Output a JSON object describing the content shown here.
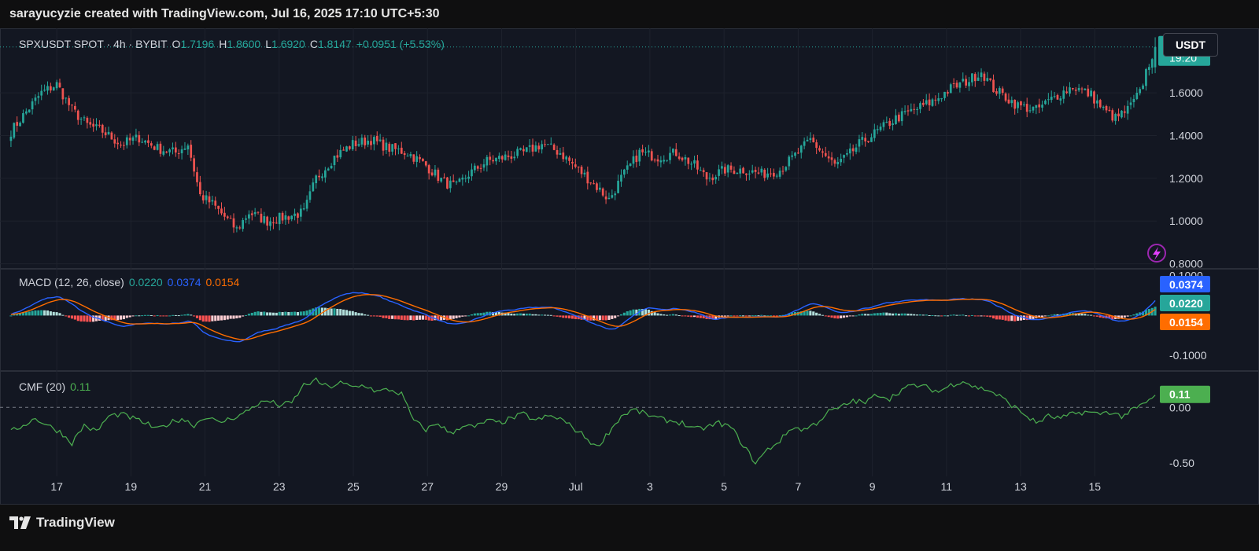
{
  "header": {
    "attribution": "sarayucyzie created with TradingView.com, Jul 16, 2025 17:10 UTC+5:30"
  },
  "currency_button": {
    "label": "USDT"
  },
  "footer": {
    "brand": "TradingView",
    "logo_icon": "tradingview-logo-icon"
  },
  "colors": {
    "up": "#26a69a",
    "down": "#ef5350",
    "macd": "#2962ff",
    "signal": "#ff6d00",
    "cmf": "#4caf50",
    "hist_up_strong": "#26a69a",
    "hist_up_weak": "#b2dfdb",
    "hist_down_strong": "#ff5252",
    "hist_down_weak": "#ffcdd2"
  },
  "price_legend": {
    "symbol": "SPXUSDT SPOT · 4h · BYBIT",
    "o_label": "O",
    "o_value": "1.7196",
    "h_label": "H",
    "h_value": "1.8600",
    "l_label": "L",
    "l_value": "1.6920",
    "c_label": "C",
    "c_value": "1.8147",
    "change": "+0.0951 (+5.53%)"
  },
  "last_price_tag": {
    "price": "1.8147",
    "countdown": "19:20"
  },
  "macd_legend": {
    "title": "MACD (12, 26, close)",
    "hist": "0.0220",
    "macd": "0.0374",
    "signal": "0.0154"
  },
  "cmf_legend": {
    "title": "CMF (20)",
    "value": "0.11"
  },
  "chart_data": [
    {
      "type": "candlestick",
      "symbol": "SPXUSDT SPOT",
      "interval": "4h",
      "exchange": "BYBIT",
      "quote_currency": "USDT",
      "x_ticks": [
        "17",
        "19",
        "21",
        "23",
        "25",
        "27",
        "29",
        "Jul",
        "3",
        "5",
        "7",
        "9",
        "11",
        "13",
        "15"
      ],
      "y_ticks": [
        "0.8000",
        "1.0000",
        "1.2000",
        "1.4000",
        "1.6000"
      ],
      "ylim": [
        0.78,
        1.88
      ],
      "last": {
        "open": 1.7196,
        "high": 1.86,
        "low": 1.692,
        "close": 1.8147,
        "change": 0.0951,
        "change_pct": 5.53
      },
      "close_anchors": [
        [
          0,
          1.42
        ],
        [
          6,
          1.53
        ],
        [
          10,
          1.6
        ],
        [
          15,
          1.64
        ],
        [
          20,
          1.52
        ],
        [
          25,
          1.45
        ],
        [
          30,
          1.42
        ],
        [
          36,
          1.36
        ],
        [
          42,
          1.39
        ],
        [
          48,
          1.34
        ],
        [
          54,
          1.32
        ],
        [
          58,
          1.36
        ],
        [
          62,
          1.12
        ],
        [
          66,
          1.08
        ],
        [
          70,
          1.02
        ],
        [
          74,
          0.96
        ],
        [
          78,
          1.04
        ],
        [
          84,
          1.0
        ],
        [
          90,
          1.02
        ],
        [
          96,
          1.04
        ],
        [
          100,
          1.2
        ],
        [
          106,
          1.3
        ],
        [
          112,
          1.36
        ],
        [
          118,
          1.38
        ],
        [
          124,
          1.34
        ],
        [
          130,
          1.32
        ],
        [
          136,
          1.26
        ],
        [
          142,
          1.18
        ],
        [
          146,
          1.16
        ],
        [
          150,
          1.22
        ],
        [
          156,
          1.28
        ],
        [
          162,
          1.3
        ],
        [
          168,
          1.32
        ],
        [
          174,
          1.36
        ],
        [
          180,
          1.32
        ],
        [
          186,
          1.24
        ],
        [
          192,
          1.16
        ],
        [
          196,
          1.1
        ],
        [
          200,
          1.2
        ],
        [
          206,
          1.32
        ],
        [
          212,
          1.3
        ],
        [
          218,
          1.32
        ],
        [
          224,
          1.26
        ],
        [
          228,
          1.2
        ],
        [
          234,
          1.24
        ],
        [
          240,
          1.24
        ],
        [
          246,
          1.22
        ],
        [
          252,
          1.24
        ],
        [
          258,
          1.32
        ],
        [
          262,
          1.38
        ],
        [
          266,
          1.32
        ],
        [
          270,
          1.26
        ],
        [
          274,
          1.3
        ],
        [
          278,
          1.36
        ],
        [
          284,
          1.42
        ],
        [
          290,
          1.48
        ],
        [
          296,
          1.52
        ],
        [
          302,
          1.56
        ],
        [
          308,
          1.62
        ],
        [
          314,
          1.66
        ],
        [
          318,
          1.7
        ],
        [
          322,
          1.62
        ],
        [
          326,
          1.58
        ],
        [
          330,
          1.54
        ],
        [
          336,
          1.52
        ],
        [
          342,
          1.58
        ],
        [
          348,
          1.63
        ],
        [
          354,
          1.59
        ],
        [
          358,
          1.52
        ],
        [
          362,
          1.48
        ],
        [
          366,
          1.52
        ],
        [
          370,
          1.6
        ],
        [
          372,
          1.7
        ],
        [
          375,
          1.8147
        ]
      ]
    },
    {
      "type": "macd",
      "name": "MACD (12, 26, close)",
      "histogram": 0.022,
      "macd": 0.0374,
      "signal": 0.0154,
      "y_ticks": [
        "-0.1000",
        "0.1000"
      ],
      "ylim": [
        -0.135,
        0.115
      ]
    },
    {
      "type": "line",
      "name": "CMF (20)",
      "value": 0.11,
      "y_ticks": [
        "-0.50",
        "0.00"
      ],
      "ylim": [
        -0.62,
        0.32
      ],
      "zero_line": true,
      "anchors": [
        [
          0,
          -0.22
        ],
        [
          4,
          -0.16
        ],
        [
          8,
          -0.1
        ],
        [
          12,
          -0.16
        ],
        [
          16,
          -0.22
        ],
        [
          20,
          -0.32
        ],
        [
          24,
          -0.16
        ],
        [
          28,
          -0.22
        ],
        [
          32,
          -0.08
        ],
        [
          36,
          -0.06
        ],
        [
          40,
          -0.1
        ],
        [
          44,
          -0.14
        ],
        [
          48,
          -0.2
        ],
        [
          52,
          -0.14
        ],
        [
          56,
          -0.1
        ],
        [
          60,
          -0.16
        ],
        [
          64,
          -0.08
        ],
        [
          68,
          -0.14
        ],
        [
          72,
          -0.1
        ],
        [
          76,
          -0.06
        ],
        [
          80,
          0.02
        ],
        [
          84,
          0.06
        ],
        [
          88,
          0.02
        ],
        [
          92,
          0.04
        ],
        [
          96,
          0.2
        ],
        [
          100,
          0.24
        ],
        [
          104,
          0.18
        ],
        [
          108,
          0.22
        ],
        [
          112,
          0.18
        ],
        [
          116,
          0.2
        ],
        [
          120,
          0.14
        ],
        [
          124,
          0.16
        ],
        [
          128,
          0.12
        ],
        [
          132,
          -0.12
        ],
        [
          136,
          -0.2
        ],
        [
          140,
          -0.14
        ],
        [
          144,
          -0.24
        ],
        [
          148,
          -0.16
        ],
        [
          152,
          -0.18
        ],
        [
          156,
          -0.12
        ],
        [
          160,
          -0.14
        ],
        [
          164,
          -0.1
        ],
        [
          168,
          -0.06
        ],
        [
          172,
          -0.12
        ],
        [
          176,
          -0.08
        ],
        [
          180,
          -0.1
        ],
        [
          184,
          -0.18
        ],
        [
          188,
          -0.26
        ],
        [
          192,
          -0.36
        ],
        [
          196,
          -0.22
        ],
        [
          200,
          -0.08
        ],
        [
          204,
          -0.02
        ],
        [
          208,
          -0.06
        ],
        [
          212,
          -0.1
        ],
        [
          216,
          -0.12
        ],
        [
          220,
          -0.14
        ],
        [
          224,
          -0.2
        ],
        [
          228,
          -0.18
        ],
        [
          232,
          -0.14
        ],
        [
          236,
          -0.18
        ],
        [
          240,
          -0.34
        ],
        [
          244,
          -0.5
        ],
        [
          248,
          -0.38
        ],
        [
          252,
          -0.3
        ],
        [
          256,
          -0.18
        ],
        [
          260,
          -0.2
        ],
        [
          264,
          -0.14
        ],
        [
          268,
          -0.04
        ],
        [
          272,
          0.0
        ],
        [
          276,
          0.06
        ],
        [
          280,
          0.04
        ],
        [
          284,
          0.12
        ],
        [
          288,
          0.08
        ],
        [
          292,
          0.16
        ],
        [
          296,
          0.2
        ],
        [
          300,
          0.18
        ],
        [
          304,
          0.14
        ],
        [
          308,
          0.2
        ],
        [
          312,
          0.24
        ],
        [
          316,
          0.18
        ],
        [
          320,
          0.16
        ],
        [
          324,
          0.1
        ],
        [
          328,
          0.02
        ],
        [
          332,
          -0.06
        ],
        [
          336,
          -0.14
        ],
        [
          340,
          -0.08
        ],
        [
          344,
          -0.1
        ],
        [
          348,
          -0.06
        ],
        [
          352,
          -0.04
        ],
        [
          356,
          -0.06
        ],
        [
          360,
          -0.04
        ],
        [
          364,
          -0.08
        ],
        [
          368,
          -0.02
        ],
        [
          372,
          0.04
        ],
        [
          375,
          0.11
        ]
      ]
    }
  ]
}
